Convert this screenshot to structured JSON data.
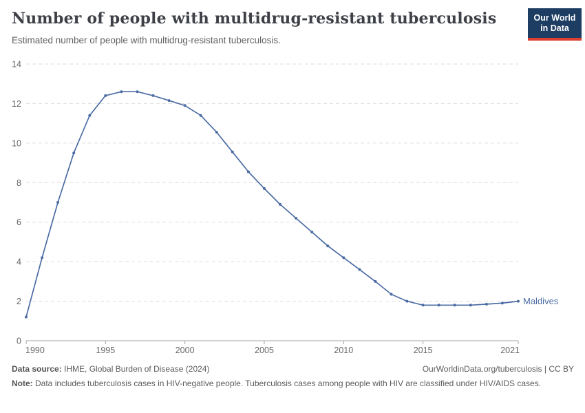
{
  "header": {
    "logo": {
      "line1": "Our World",
      "line2": "in Data"
    }
  },
  "chart_data": {
    "type": "line",
    "title": "Number of people with multidrug-resistant tuberculosis",
    "subtitle": "Estimated number of people with multidrug-resistant tuberculosis.",
    "xlabel": "",
    "ylabel": "",
    "xlim": [
      1990,
      2021
    ],
    "ylim": [
      0,
      14
    ],
    "xticks": [
      1990,
      1995,
      2000,
      2005,
      2010,
      2015,
      2021
    ],
    "yticks": [
      0,
      2,
      4,
      6,
      8,
      10,
      12,
      14
    ],
    "grid": "horizontal-dashed",
    "legend_position": "end-of-line-label",
    "x": [
      1990,
      1991,
      1992,
      1993,
      1994,
      1995,
      1996,
      1997,
      1998,
      1999,
      2000,
      2001,
      2002,
      2003,
      2004,
      2005,
      2006,
      2007,
      2008,
      2009,
      2010,
      2011,
      2012,
      2013,
      2014,
      2015,
      2016,
      2017,
      2018,
      2019,
      2020,
      2021
    ],
    "series": [
      {
        "name": "Maldives",
        "values": [
          1.2,
          4.2,
          7.0,
          9.5,
          11.4,
          12.4,
          12.6,
          12.6,
          12.4,
          12.15,
          11.9,
          11.4,
          10.55,
          9.55,
          8.55,
          7.7,
          6.9,
          6.2,
          5.5,
          4.8,
          4.2,
          3.6,
          3.0,
          2.35,
          2.0,
          1.8,
          1.8,
          1.8,
          1.8,
          1.85,
          1.9,
          2.0
        ]
      }
    ]
  },
  "footer": {
    "source_label": "Data source:",
    "source_text": " IHME, Global Burden of Disease (2024)",
    "license_text": "OurWorldinData.org/tuberculosis | CC BY",
    "note_label": "Note:",
    "note_text": " Data includes tuberculosis cases in HIV-negative people. Tuberculosis cases among people with HIV are classified under HIV/AIDS cases."
  },
  "colors": {
    "line": "#4c6ca4",
    "entity_label": "#4c6ca4",
    "grid": "#dddddd",
    "axis": "#a3a3a3",
    "tick_text": "#666666",
    "title_text": "#3d4046",
    "muted_text": "#5b5b5b",
    "logo_bg": "#1d3d63",
    "logo_stripe": "#dc3e32"
  }
}
